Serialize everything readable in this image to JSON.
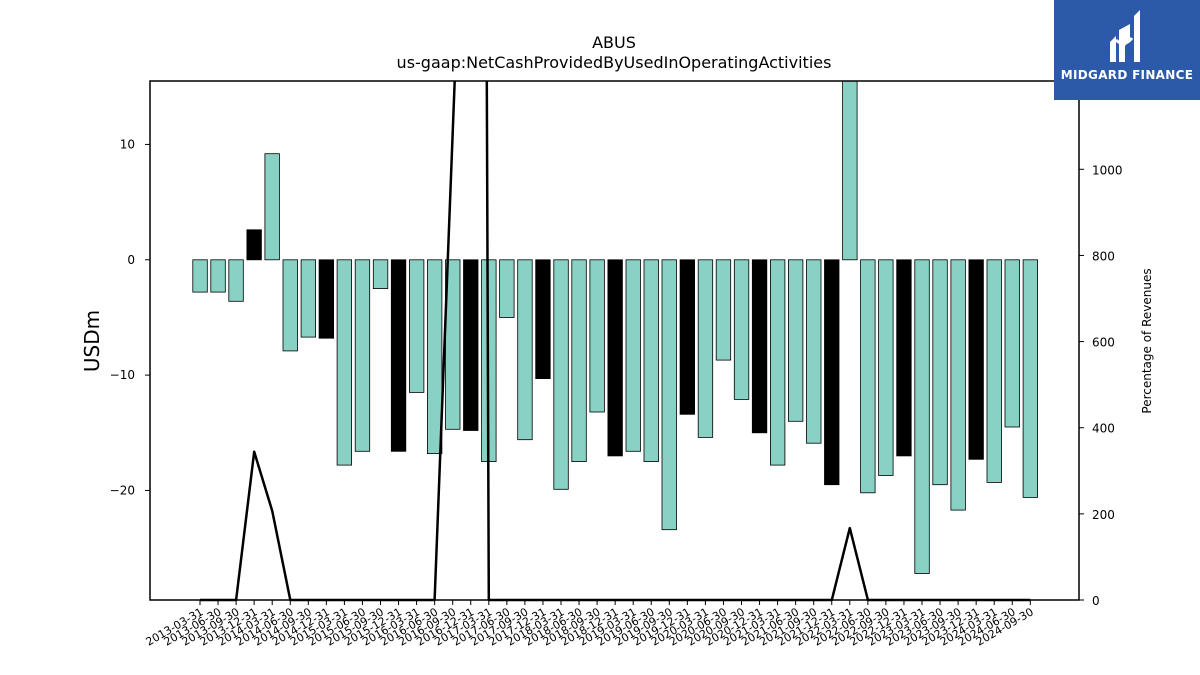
{
  "chart_data": {
    "type": "bar",
    "title": "ABUS",
    "subtitle": "us-gaap:NetCashProvidedByUsedInOperatingActivities",
    "ylabel": "USDm",
    "y2label": "Percentage of Revenues",
    "ylim": [
      -29.5,
      15.5
    ],
    "y2lim": [
      0,
      1205
    ],
    "yticks": [
      10,
      0,
      -10,
      -20
    ],
    "y2ticks": [
      0,
      200,
      400,
      600,
      800,
      1000
    ],
    "bar_color": "#88d1c4",
    "highlight_color": "#000000",
    "categories": [
      "2013-03-31",
      "2013-06-30",
      "2013-09-30",
      "2013-12-31",
      "2014-03-31",
      "2014-06-30",
      "2014-09-30",
      "2014-12-31",
      "2015-03-31",
      "2015-06-30",
      "2015-09-30",
      "2015-12-31",
      "2016-03-31",
      "2016-06-30",
      "2016-09-30",
      "2016-12-31",
      "2017-03-31",
      "2017-06-30",
      "2017-09-30",
      "2017-12-31",
      "2018-03-31",
      "2018-06-30",
      "2018-09-30",
      "2018-12-31",
      "2019-03-31",
      "2019-06-30",
      "2019-09-30",
      "2019-12-31",
      "2020-03-31",
      "2020-06-30",
      "2020-09-30",
      "2020-12-31",
      "2021-03-31",
      "2021-06-30",
      "2021-09-30",
      "2021-12-31",
      "2022-03-31",
      "2022-06-30",
      "2022-09-30",
      "2022-12-31",
      "2023-03-31",
      "2023-06-30",
      "2023-09-30",
      "2023-12-31",
      "2024-03-31",
      "2024-06-30",
      "2024-09-30"
    ],
    "values": [
      -2.8,
      -2.8,
      -3.6,
      2.6,
      9.2,
      -7.9,
      -6.7,
      -6.8,
      -17.8,
      -16.6,
      -2.5,
      -16.6,
      -11.5,
      -16.8,
      -14.7,
      -14.8,
      -17.5,
      -5.0,
      -15.6,
      -10.3,
      -19.9,
      -17.5,
      -13.2,
      -17.0,
      -16.6,
      -17.5,
      -23.4,
      -13.4,
      -15.4,
      -8.7,
      -12.1,
      -15.0,
      -17.8,
      -14.0,
      -15.9,
      -19.5,
      16.2,
      -20.2,
      -18.7,
      -17.0,
      -27.2,
      -19.5,
      -21.7,
      -17.3,
      -19.3,
      -14.5,
      -20.6
    ],
    "highlight": [
      false,
      false,
      false,
      true,
      false,
      false,
      false,
      true,
      false,
      false,
      false,
      true,
      false,
      false,
      false,
      true,
      false,
      false,
      false,
      true,
      false,
      false,
      false,
      true,
      false,
      false,
      false,
      true,
      false,
      false,
      false,
      true,
      false,
      false,
      false,
      true,
      false,
      false,
      false,
      true,
      false,
      false,
      false,
      true,
      false,
      false,
      false
    ],
    "pct_revenue": [
      0,
      0,
      0,
      344,
      207,
      0,
      0,
      0,
      0,
      0,
      0,
      0,
      0,
      0,
      null,
      null,
      0,
      0,
      0,
      0,
      0,
      0,
      0,
      0,
      0,
      0,
      0,
      0,
      0,
      0,
      0,
      0,
      0,
      0,
      0,
      0,
      167,
      0,
      0,
      0,
      0,
      0,
      0,
      0,
      0,
      0,
      0
    ],
    "pct_revenue_offscale_x_range": [
      14,
      16
    ]
  },
  "logo": {
    "text": "MIDGARD FINANCE",
    "bg_color": "#2d5aa8"
  }
}
